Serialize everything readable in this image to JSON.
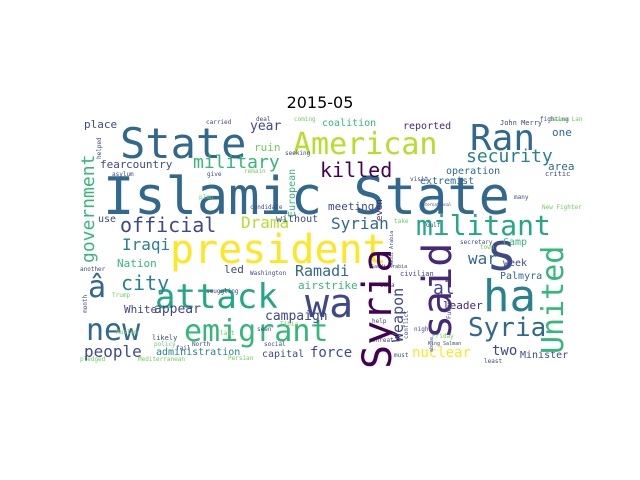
{
  "figure": {
    "title": "2015-05",
    "words": [
      {
        "text": "Islamic State",
        "color": "#31688e"
      },
      {
        "text": "president",
        "color": "#fde725"
      },
      {
        "text": "State",
        "color": "#31688e"
      },
      {
        "text": "American",
        "color": "#b5de2b"
      },
      {
        "text": "Ran",
        "color": "#31688e"
      },
      {
        "text": "attack",
        "color": "#22a884"
      },
      {
        "text": "wa",
        "color": "#3e4989"
      },
      {
        "text": "ha",
        "color": "#26828e"
      },
      {
        "text": "s",
        "color": "#3e4989"
      },
      {
        "text": "new",
        "color": "#31688e"
      },
      {
        "text": "emigrant",
        "color": "#35b779"
      },
      {
        "text": "militant",
        "color": "#22a884"
      },
      {
        "text": "Syria",
        "color": "#440154"
      },
      {
        "text": "said",
        "color": "#482878"
      },
      {
        "text": "United",
        "color": "#35b779"
      },
      {
        "text": "group",
        "color": "#31688e"
      },
      {
        "text": "â",
        "color": "#31688e"
      },
      {
        "text": "military",
        "color": "#35b779"
      },
      {
        "text": "killed",
        "color": "#440154"
      },
      {
        "text": "security",
        "color": "#26828e"
      },
      {
        "text": "official",
        "color": "#3e4989"
      },
      {
        "text": "Drama",
        "color": "#b5de2b"
      },
      {
        "text": "government",
        "color": "#35b779"
      },
      {
        "text": "Iraqi",
        "color": "#26828e"
      },
      {
        "text": "city",
        "color": "#26828e"
      },
      {
        "text": "Syrian",
        "color": "#31688e"
      },
      {
        "text": "war",
        "color": "#31688e"
      },
      {
        "text": "Ramadi",
        "color": "#31688e"
      },
      {
        "text": "Weapon",
        "color": "#3e4989"
      },
      {
        "text": "al",
        "color": "#3e4989"
      },
      {
        "text": "people",
        "color": "#3e4989"
      },
      {
        "text": "force",
        "color": "#3e4989"
      },
      {
        "text": "nuclear",
        "color": "#fde725"
      },
      {
        "text": "two",
        "color": "#3e4989"
      },
      {
        "text": "campaign",
        "color": "#3e4989"
      },
      {
        "text": "appear",
        "color": "#3e4989"
      },
      {
        "text": "year",
        "color": "#3e4989"
      },
      {
        "text": "ruin",
        "color": "#6ece58"
      },
      {
        "text": "place",
        "color": "#3e4989"
      },
      {
        "text": "coalition",
        "color": "#35b779"
      },
      {
        "text": "reported",
        "color": "#482878"
      },
      {
        "text": "John Merry",
        "color": "#3e4989"
      },
      {
        "text": "area",
        "color": "#31688e"
      },
      {
        "text": "one",
        "color": "#31688e"
      },
      {
        "text": "country",
        "color": "#3e4989"
      },
      {
        "text": "fear",
        "color": "#3e4989"
      },
      {
        "text": "extremist",
        "color": "#31688e"
      },
      {
        "text": "operation",
        "color": "#31688e"
      },
      {
        "text": "meeting",
        "color": "#3e4989"
      },
      {
        "text": "use",
        "color": "#3e4989"
      },
      {
        "text": "without",
        "color": "#3e4989"
      },
      {
        "text": "Nation",
        "color": "#35b779"
      },
      {
        "text": "led",
        "color": "#3e4989"
      },
      {
        "text": "White",
        "color": "#3e4989"
      },
      {
        "text": "Camp",
        "color": "#35b779"
      },
      {
        "text": "week",
        "color": "#3e4989"
      },
      {
        "text": "Palmyra",
        "color": "#31688e"
      },
      {
        "text": "leader",
        "color": "#482878"
      },
      {
        "text": "airstrike",
        "color": "#35b779"
      },
      {
        "text": "administration",
        "color": "#26828e"
      },
      {
        "text": "capital",
        "color": "#3e4989"
      },
      {
        "text": "Minister",
        "color": "#3e4989"
      },
      {
        "text": "Washington",
        "color": "#3e4989"
      },
      {
        "text": "smuggling",
        "color": "#3e4989"
      },
      {
        "text": "civilian",
        "color": "#3e4989"
      },
      {
        "text": "European",
        "color": "#35b779"
      },
      {
        "text": "even",
        "color": "#482878"
      },
      {
        "text": "fighting",
        "color": "#3e4989"
      },
      {
        "text": "critic",
        "color": "#3e4989"
      },
      {
        "text": "another",
        "color": "#3e4989"
      },
      {
        "text": "likely",
        "color": "#3e4989"
      },
      {
        "text": "threat",
        "color": "#3e4989"
      },
      {
        "text": "Persian",
        "color": "#6ece58"
      },
      {
        "text": "Mediterranean",
        "color": "#6ece58"
      },
      {
        "text": "carried",
        "color": "#3e4989"
      },
      {
        "text": "deal",
        "color": "#3e4989"
      },
      {
        "text": "coming",
        "color": "#6ece58"
      },
      {
        "text": "seeking",
        "color": "#3e4989"
      },
      {
        "text": "asylum",
        "color": "#3e4989"
      },
      {
        "text": "give",
        "color": "#3e4989"
      },
      {
        "text": "remain",
        "color": "#6ece58"
      },
      {
        "text": "plan",
        "color": "#6ece58"
      },
      {
        "text": "candidate",
        "color": "#3e4989"
      },
      {
        "text": "seen",
        "color": "#3e4989"
      },
      {
        "text": "visit",
        "color": "#3e4989"
      },
      {
        "text": "take",
        "color": "#6ece58"
      },
      {
        "text": "Gulf",
        "color": "#3e4989"
      },
      {
        "text": "international",
        "color": "#3e4989"
      },
      {
        "text": "many",
        "color": "#3e4989"
      },
      {
        "text": "town",
        "color": "#6ece58"
      },
      {
        "text": "secretary",
        "color": "#3e4989"
      },
      {
        "text": "Tibia",
        "color": "#6ece58"
      },
      {
        "text": "social",
        "color": "#3e4989"
      },
      {
        "text": "North",
        "color": "#3e4989"
      },
      {
        "text": "policy",
        "color": "#6ece58"
      },
      {
        "text": "fail",
        "color": "#3e4989"
      },
      {
        "text": "last",
        "color": "#6ece58"
      },
      {
        "text": "help",
        "color": "#3e4989"
      },
      {
        "text": "night",
        "color": "#3e4989"
      },
      {
        "text": "must",
        "color": "#3e4989"
      },
      {
        "text": "least",
        "color": "#3e4989"
      },
      {
        "text": "Friday",
        "color": "#6ece58"
      },
      {
        "text": "King Salman",
        "color": "#3e4989"
      },
      {
        "text": "month",
        "color": "#3e4989"
      },
      {
        "text": "pledged",
        "color": "#6ece58"
      },
      {
        "text": "Trump",
        "color": "#6ece58"
      },
      {
        "text": "Muslim",
        "color": "#6ece58"
      },
      {
        "text": "helped",
        "color": "#3e4989"
      },
      {
        "text": "Funny",
        "color": "#3e4989"
      },
      {
        "text": "conflict",
        "color": "#3e4989"
      },
      {
        "text": "Saudi Arabia",
        "color": "#3e4989"
      },
      {
        "text": "Saana Lan",
        "color": "#3e4989"
      },
      {
        "text": "abuse",
        "color": "#6ece58"
      },
      {
        "text": "New Fighter",
        "color": "#3e4989"
      },
      {
        "text": "Sana",
        "color": "#6ece58"
      },
      {
        "text": "Iran",
        "color": "#3e4989"
      }
    ]
  }
}
